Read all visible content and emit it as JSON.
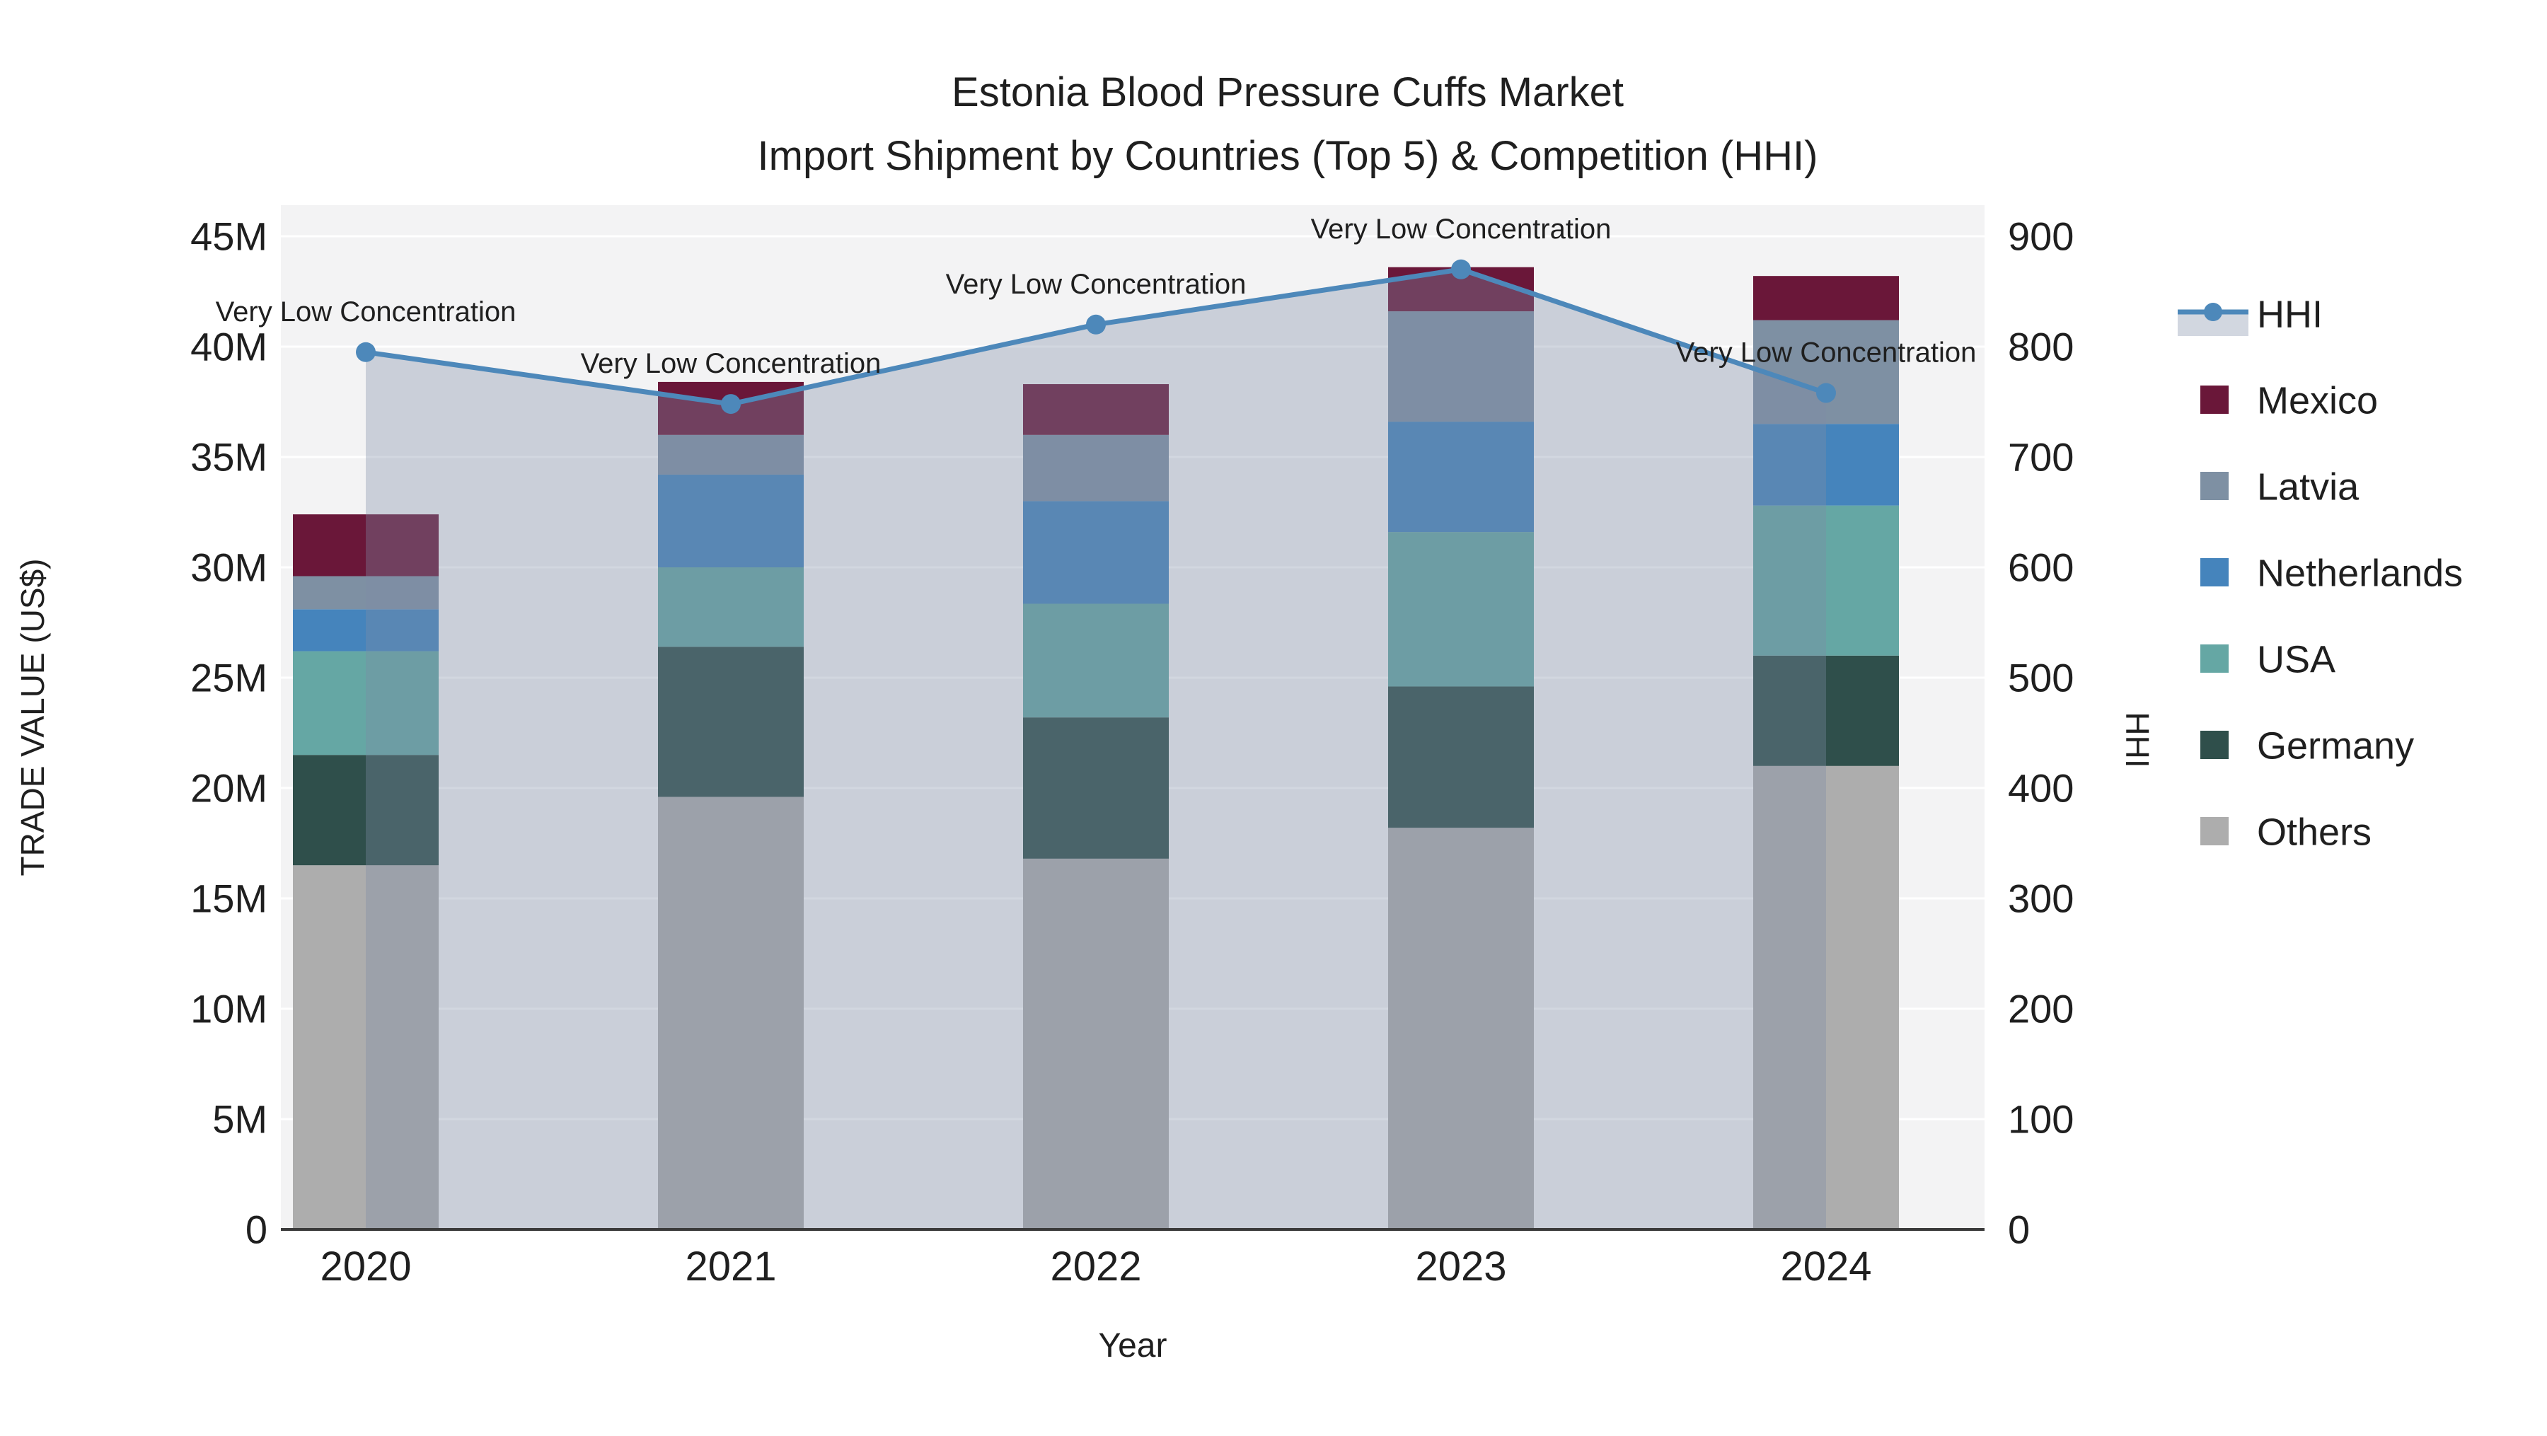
{
  "title": {
    "line1": "Estonia Blood Pressure Cuffs Market",
    "line2": "Import Shipment by Countries (Top 5) & Competition (HHI)"
  },
  "axes": {
    "x_title": "Year",
    "y_left_title": "TRADE VALUE (US$)",
    "y_right_title": "HHI",
    "y_left_ticks": [
      "0",
      "5M",
      "10M",
      "15M",
      "20M",
      "25M",
      "30M",
      "35M",
      "40M",
      "45M"
    ],
    "y_right_ticks": [
      "0",
      "100",
      "200",
      "300",
      "400",
      "500",
      "600",
      "700",
      "800",
      "900"
    ]
  },
  "legend": {
    "items": [
      {
        "label": "HHI",
        "type": "line",
        "color": "#4d88ba"
      },
      {
        "label": "Mexico",
        "type": "swatch",
        "color": "#6a1739"
      },
      {
        "label": "Latvia",
        "type": "swatch",
        "color": "#7e90a3"
      },
      {
        "label": "Netherlands",
        "type": "swatch",
        "color": "#4584bc"
      },
      {
        "label": "USA",
        "type": "swatch",
        "color": "#65a7a4"
      },
      {
        "label": "Germany",
        "type": "swatch",
        "color": "#2f4f4b"
      },
      {
        "label": "Others",
        "type": "swatch",
        "color": "#adadad"
      }
    ]
  },
  "chart_data": {
    "type": "bar",
    "subtype": "stacked-bar-with-line",
    "categories": [
      "2020",
      "2021",
      "2022",
      "2023",
      "2024"
    ],
    "series": [
      {
        "name": "Others",
        "color": "#adadad",
        "values": [
          16.5,
          19.6,
          16.8,
          18.2,
          21.0
        ]
      },
      {
        "name": "Germany",
        "color": "#2f4f4b",
        "values": [
          5.0,
          6.8,
          6.4,
          6.4,
          5.0
        ]
      },
      {
        "name": "USA",
        "color": "#65a7a4",
        "values": [
          4.7,
          3.6,
          5.15,
          7.0,
          6.8
        ]
      },
      {
        "name": "Netherlands",
        "color": "#4584bc",
        "values": [
          1.9,
          4.2,
          4.65,
          5.0,
          3.7
        ]
      },
      {
        "name": "Latvia",
        "color": "#7e90a3",
        "values": [
          1.5,
          1.8,
          3.0,
          5.0,
          4.7
        ]
      },
      {
        "name": "Mexico",
        "color": "#6a1739",
        "values": [
          2.8,
          2.4,
          2.3,
          2.0,
          2.0
        ]
      }
    ],
    "bar_totals_millions": [
      32.4,
      38.4,
      38.3,
      43.6,
      43.2
    ],
    "line_series": {
      "name": "HHI",
      "color": "#4d88ba",
      "fill_color": "rgba(126,140,166,0.35)",
      "values": [
        795,
        748,
        820,
        870,
        758
      ]
    },
    "annotations": [
      "Very Low Concentration",
      "Very Low Concentration",
      "Very Low Concentration",
      "Very Low Concentration",
      "Very Low Concentration"
    ],
    "title": "Estonia Blood Pressure Cuffs Market — Import Shipment by Countries (Top 5) & Competition (HHI)",
    "xlabel": "Year",
    "ylabel": "TRADE VALUE (US$)",
    "ylabel_right": "HHI",
    "ylim_millions": [
      0,
      45
    ],
    "y2lim": [
      0,
      900
    ],
    "grid": true,
    "legend_position": "right",
    "values_unit": "US$ millions"
  },
  "style": {
    "plot_bg": "#f3f3f4",
    "grid_color": "#ffffff",
    "axis_line_color": "#3a3a3a",
    "text_color": "#1f1f1f"
  }
}
